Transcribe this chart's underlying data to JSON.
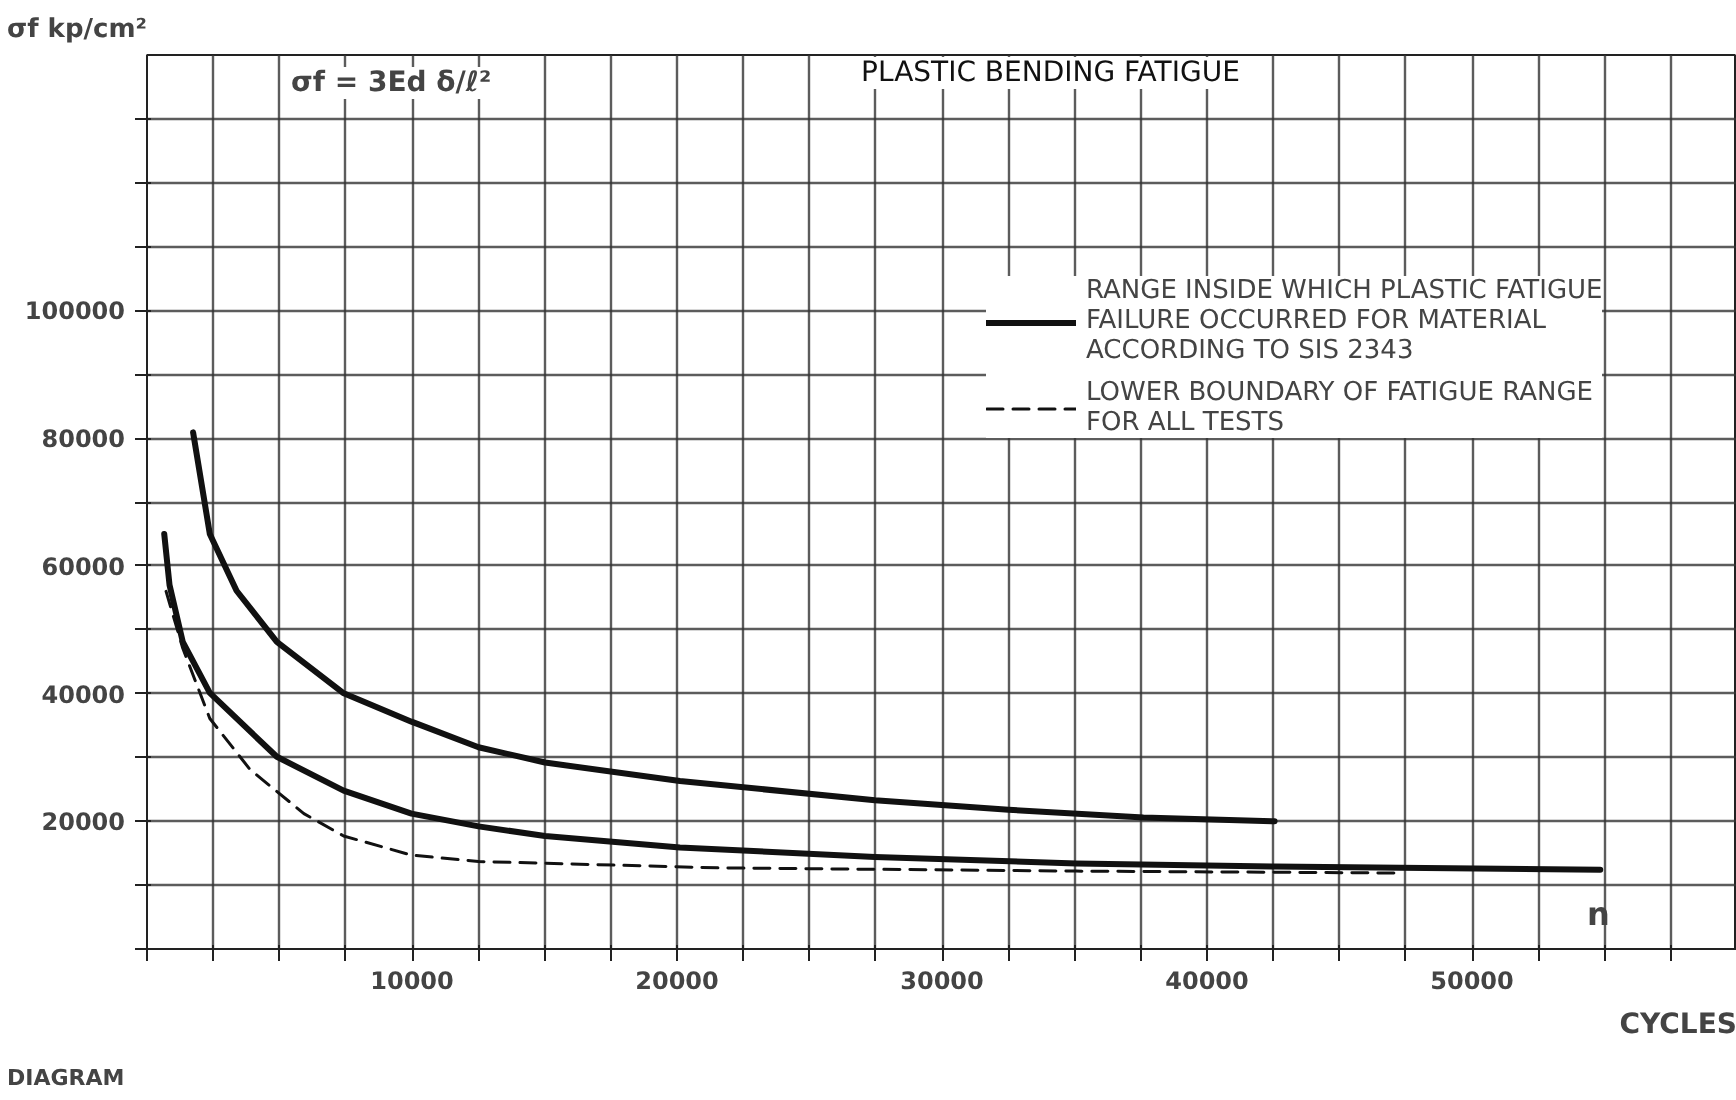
{
  "chart_data": {
    "type": "line",
    "title": "PLASTIC BENDING FATIGUE",
    "ylabel": "σf kp/cm²",
    "xlabel": "CYCLES",
    "annotations": [
      "σf = 3Ed δ/ℓ²",
      "n",
      "DIAGRAM"
    ],
    "xlim": [
      0,
      60000
    ],
    "ylim": [
      0,
      140000
    ],
    "xticks": [
      {
        "value": 0,
        "label": null
      },
      {
        "value": 2500,
        "label": null
      },
      {
        "value": 5000,
        "label": null
      },
      {
        "value": 7500,
        "label": null
      },
      10000,
      {
        "value": 12500,
        "label": null
      },
      {
        "value": 15000,
        "label": null
      },
      {
        "value": 17500,
        "label": null
      },
      20000,
      {
        "value": 22500,
        "label": null
      },
      {
        "value": 25000,
        "label": null
      },
      {
        "value": 27500,
        "label": null
      },
      30000,
      {
        "value": 32500,
        "label": null
      },
      {
        "value": 35000,
        "label": null
      },
      {
        "value": 37500,
        "label": null
      },
      40000,
      {
        "value": 42500,
        "label": null
      },
      {
        "value": 45000,
        "label": null
      },
      {
        "value": 47500,
        "label": null
      },
      50000,
      {
        "value": 52500,
        "label": null
      },
      {
        "value": 55000,
        "label": null
      },
      {
        "value": 57500,
        "label": null
      }
    ],
    "yticks": [
      {
        "value": 0,
        "label": null
      },
      {
        "value": 10000,
        "label": null
      },
      20000,
      {
        "value": 30000,
        "label": null
      },
      40000,
      {
        "value": 50000,
        "label": null
      },
      60000,
      {
        "value": 70000,
        "label": null
      },
      80000,
      {
        "value": 90000,
        "label": null
      },
      100000,
      {
        "value": 110000,
        "label": null
      },
      {
        "value": 120000,
        "label": null
      },
      {
        "value": 130000,
        "label": null
      }
    ],
    "grid": true,
    "legend": "top right",
    "line_style": "solid",
    "series": [
      {
        "name": "RANGE INSIDE WHICH PLASTIC FATIGUE\nFAILURE OCCURRED FOR MATERIAL\nACCORDING TO SIS 2343",
        "color": "#111111",
        "x": [
          1740,
          2370,
          3380,
          4900,
          7400,
          9980,
          12510,
          15020,
          20110,
          27470,
          32510,
          37600,
          42550
        ],
        "values": [
          80900,
          65000,
          56100,
          48100,
          40100,
          35600,
          31600,
          29200,
          26300,
          23300,
          21800,
          20600,
          20000
        ]
      },
      {
        "color": "#111111",
        "x": [
          650,
          850,
          1350,
          2370,
          4900,
          7420,
          9980,
          12510,
          15020,
          20110,
          27470,
          35070,
          42550,
          54840
        ],
        "values": [
          65000,
          57000,
          48100,
          40100,
          30100,
          24800,
          21200,
          19200,
          17700,
          15900,
          14400,
          13400,
          12900,
          12400
        ]
      },
      {
        "name": "LOWER BOUNDARY OF FATIGUE RANGE\nFOR ALL TESTS",
        "color": "#111111",
        "line_style": "dashed",
        "x": [
          720,
          1350,
          2370,
          3890,
          5920,
          7420,
          9980,
          12510,
          21630,
          35070,
          47240
        ],
        "values": [
          56000,
          47100,
          36100,
          28100,
          21200,
          17700,
          14700,
          13700,
          12700,
          12200,
          11900
        ]
      }
    ]
  }
}
